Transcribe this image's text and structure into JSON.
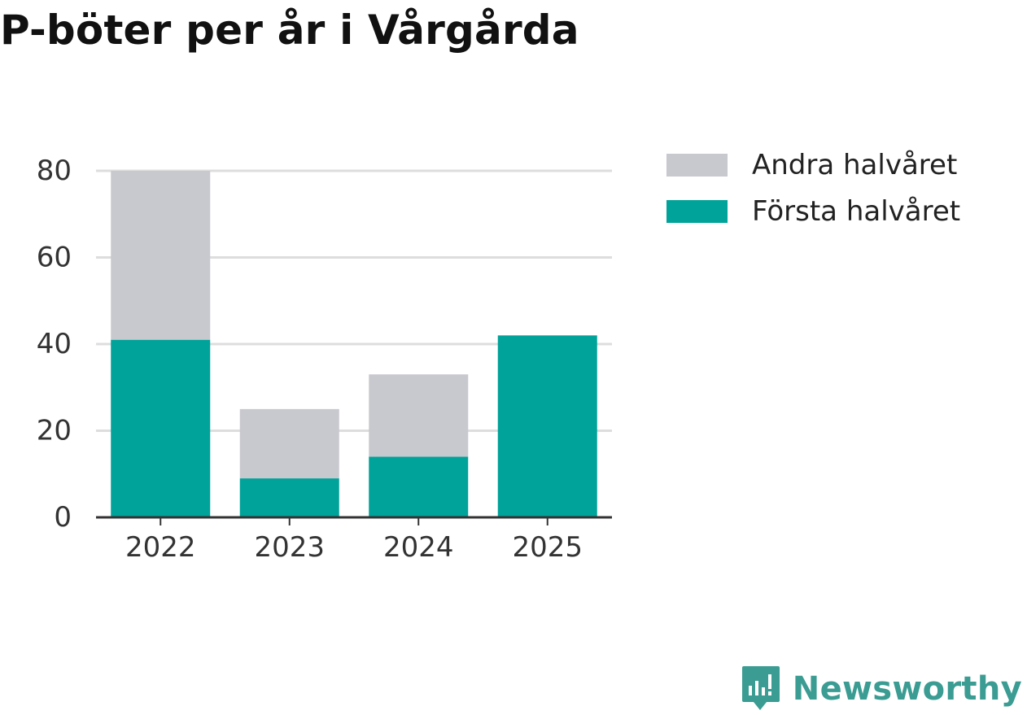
{
  "title": "P-böter per år i Vårgårda",
  "brand": "Newsworthy",
  "colors": {
    "forsta": "#00a39a",
    "andra": "#c8c8cf",
    "grid": "#dddddd",
    "axis": "#333333",
    "brand": "#3a9c92"
  },
  "chart_data": {
    "type": "bar",
    "stacked": true,
    "title": "P-böter per år i Vårgårda",
    "categories": [
      "2022",
      "2023",
      "2024",
      "2025"
    ],
    "series": [
      {
        "name": "Första halvåret",
        "values": [
          41,
          9,
          14,
          42
        ]
      },
      {
        "name": "Andra halvåret",
        "values": [
          39,
          16,
          19,
          0
        ]
      }
    ],
    "legend": [
      "Andra halvåret",
      "Första halvåret"
    ],
    "yticks": [
      0,
      20,
      40,
      60,
      80
    ],
    "ylim": [
      0,
      80
    ],
    "xlabel": "",
    "ylabel": "",
    "grid": true,
    "legend_position": "right"
  }
}
